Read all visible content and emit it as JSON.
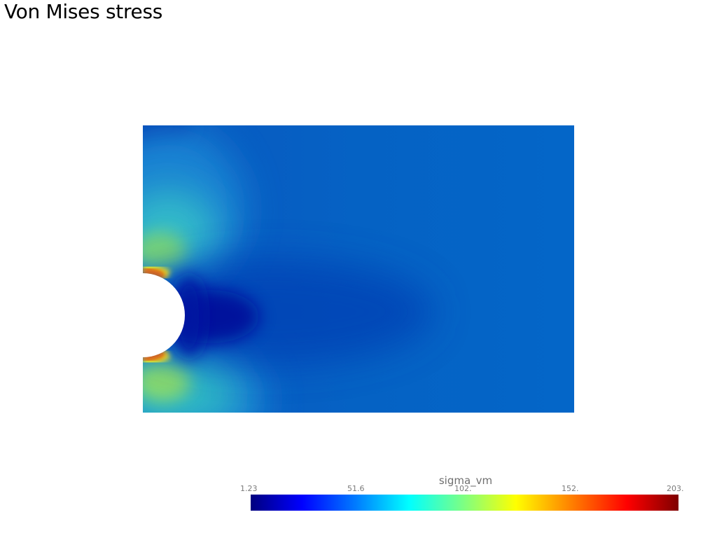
{
  "title": "Von Mises stress",
  "colorbar": {
    "title": "sigma_vm",
    "min": 1.23,
    "max": 203,
    "tick_labels": [
      "1.23",
      "51.6",
      "102.",
      "152.",
      "203."
    ],
    "colormap": "jet",
    "colors": [
      "#00007f",
      "#0000ff",
      "#0080ff",
      "#00ffff",
      "#80ff80",
      "#ffff00",
      "#ff8000",
      "#ff0000",
      "#7f0000"
    ]
  },
  "field": {
    "background_color": "#0562c4",
    "hole_color": "#ffffff"
  }
}
